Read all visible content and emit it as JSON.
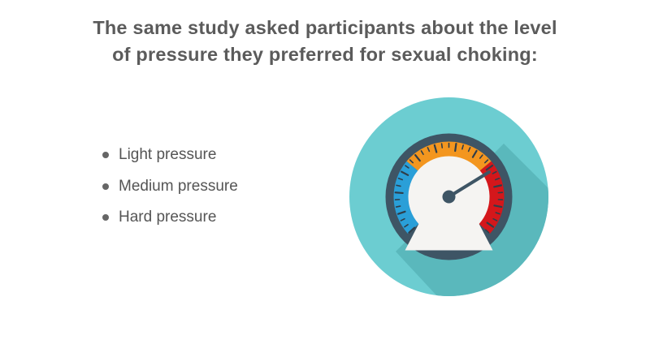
{
  "title": {
    "line1": "The same study asked participants about the level",
    "line2": "of pressure they preferred for sexual choking:"
  },
  "bullets": [
    {
      "label": "Light pressure"
    },
    {
      "label": "Medium pressure"
    },
    {
      "label": "Hard pressure"
    }
  ],
  "gauge": {
    "icon": "pressure-gauge-icon",
    "colors": {
      "outer_circle": "#6ccdd1",
      "long_shadow": "#5ab8bc",
      "bezel": "#3e5565",
      "cold_zone": "#2a9fd8",
      "mid_zone": "#f3961f",
      "hot_zone": "#d4171b",
      "face": "#f5f4f2",
      "ticks": "#2f3e4a",
      "needle": "#3e5565"
    }
  }
}
